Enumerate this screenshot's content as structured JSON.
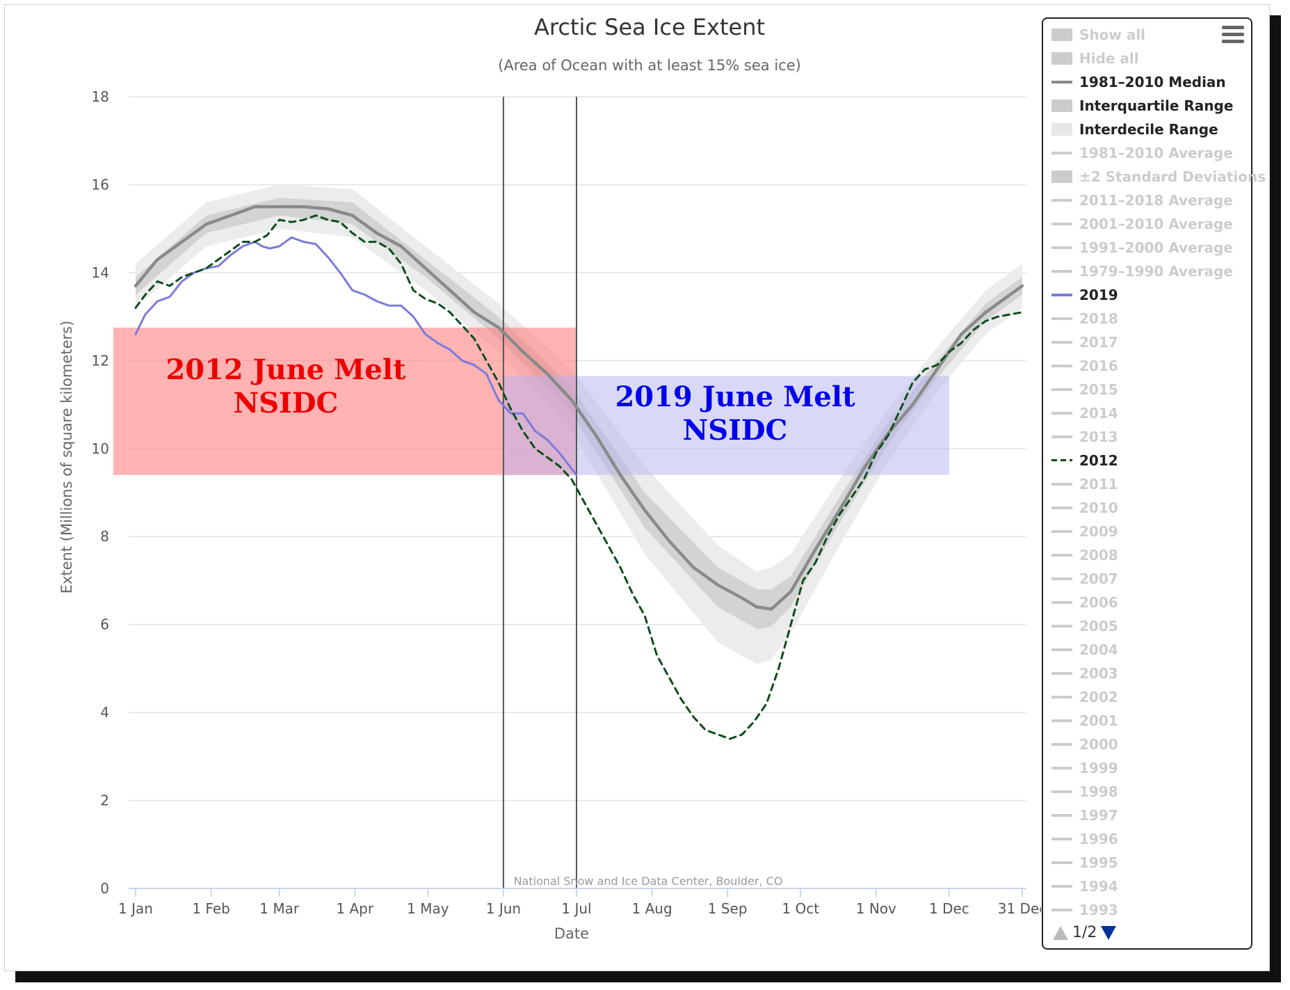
{
  "chart_data": {
    "type": "line",
    "title": "Arctic Sea Ice Extent",
    "subtitle": "(Area of Ocean with at least 15% sea ice)",
    "xlabel": "Date",
    "ylabel": "Extent (Millions of square kilometers)",
    "credit": "National Snow and Ice Data Center, Boulder, CO",
    "xlim": [
      "Jan 1",
      "Dec 31"
    ],
    "ylim": [
      0,
      18
    ],
    "y_ticks": [
      "0",
      "2",
      "4",
      "6",
      "8",
      "10",
      "12",
      "14",
      "16",
      "18"
    ],
    "x_ticks": [
      {
        "label": "1 Jan",
        "day": 1
      },
      {
        "label": "1 Feb",
        "day": 32
      },
      {
        "label": "1 Mar",
        "day": 60
      },
      {
        "label": "1 Apr",
        "day": 91
      },
      {
        "label": "1 May",
        "day": 121
      },
      {
        "label": "1 Jun",
        "day": 152
      },
      {
        "label": "1 Jul",
        "day": 182
      },
      {
        "label": "1 Aug",
        "day": 213
      },
      {
        "label": "1 Sep",
        "day": 244
      },
      {
        "label": "1 Oct",
        "day": 274
      },
      {
        "label": "1 Nov",
        "day": 305
      },
      {
        "label": "1 Dec",
        "day": 335
      },
      {
        "label": "31 Dec",
        "day": 365
      }
    ],
    "grid": true,
    "legend_position": "right",
    "vertical_lines": [
      "1 Jun",
      "1 Jul"
    ],
    "colors": {
      "median": "#8a8a8a",
      "iqr": "#d3d3d3",
      "idr": "#ececec",
      "y2019": "#7b7bdb",
      "y2012": "#0b4d1c",
      "red_box": "#ff8080",
      "blue_box": "#b4b4f0",
      "red_text": "#ee0000",
      "blue_text": "#0000ee"
    },
    "series": [
      {
        "name": "1981–2010 Median",
        "style": "solid",
        "x": [
          1,
          10,
          20,
          30,
          40,
          50,
          60,
          70,
          80,
          90,
          100,
          110,
          120,
          130,
          140,
          150,
          160,
          170,
          180,
          190,
          200,
          210,
          220,
          230,
          240,
          250,
          256,
          262,
          270,
          280,
          290,
          300,
          310,
          320,
          330,
          340,
          350,
          365
        ],
        "y": [
          13.7,
          14.3,
          14.7,
          15.1,
          15.3,
          15.5,
          15.5,
          15.5,
          15.45,
          15.3,
          14.9,
          14.6,
          14.1,
          13.6,
          13.1,
          12.75,
          12.2,
          11.7,
          11.1,
          10.3,
          9.4,
          8.6,
          7.9,
          7.3,
          6.9,
          6.6,
          6.4,
          6.35,
          6.75,
          7.7,
          8.6,
          9.55,
          10.35,
          11.0,
          11.8,
          12.6,
          13.1,
          13.7
        ]
      },
      {
        "name": "Interquartile Range",
        "style": "band",
        "x": [
          1,
          30,
          60,
          90,
          120,
          150,
          180,
          210,
          240,
          256,
          262,
          270,
          290,
          310,
          330,
          350,
          365
        ],
        "low": [
          13.5,
          14.9,
          15.3,
          15.1,
          13.9,
          12.5,
          10.8,
          8.2,
          6.4,
          5.9,
          5.95,
          6.4,
          8.3,
          10.1,
          11.6,
          12.9,
          13.5
        ],
        "high": [
          13.9,
          15.3,
          15.7,
          15.6,
          14.3,
          13.0,
          11.4,
          9.0,
          7.3,
          6.8,
          6.8,
          7.1,
          8.9,
          10.6,
          12.0,
          13.3,
          13.9
        ]
      },
      {
        "name": "Interdecile Range",
        "style": "band",
        "x": [
          1,
          30,
          60,
          90,
          120,
          150,
          180,
          210,
          240,
          256,
          262,
          270,
          290,
          310,
          330,
          350,
          365
        ],
        "low": [
          13.2,
          14.6,
          15.0,
          14.8,
          13.6,
          12.2,
          10.4,
          7.6,
          5.6,
          5.1,
          5.2,
          5.8,
          7.8,
          9.7,
          11.3,
          12.6,
          13.2
        ],
        "high": [
          14.2,
          15.6,
          16.0,
          15.9,
          14.6,
          13.3,
          11.8,
          9.6,
          7.8,
          7.2,
          7.3,
          7.6,
          9.3,
          10.9,
          12.3,
          13.6,
          14.2
        ]
      },
      {
        "name": "2019",
        "style": "solid",
        "x": [
          1,
          5,
          10,
          15,
          20,
          25,
          30,
          35,
          40,
          45,
          50,
          53,
          56,
          60,
          65,
          70,
          75,
          80,
          85,
          90,
          95,
          100,
          105,
          110,
          115,
          120,
          125,
          130,
          135,
          140,
          145,
          150,
          155,
          160,
          165,
          170,
          175,
          182
        ],
        "y": [
          12.6,
          13.05,
          13.35,
          13.45,
          13.8,
          14.0,
          14.1,
          14.15,
          14.4,
          14.6,
          14.7,
          14.6,
          14.55,
          14.6,
          14.8,
          14.7,
          14.65,
          14.35,
          14.0,
          13.6,
          13.5,
          13.35,
          13.25,
          13.25,
          13.0,
          12.6,
          12.4,
          12.25,
          12.0,
          11.9,
          11.7,
          11.1,
          10.8,
          10.8,
          10.4,
          10.2,
          9.9,
          9.4
        ]
      },
      {
        "name": "2012",
        "style": "dashed",
        "x": [
          1,
          5,
          10,
          15,
          20,
          25,
          30,
          35,
          40,
          45,
          50,
          55,
          60,
          65,
          70,
          75,
          80,
          85,
          90,
          95,
          100,
          105,
          110,
          115,
          120,
          125,
          130,
          140,
          150,
          155,
          160,
          165,
          170,
          175,
          180,
          185,
          190,
          195,
          200,
          205,
          210,
          215,
          220,
          225,
          230,
          235,
          240,
          245,
          250,
          255,
          260,
          265,
          270,
          275,
          280,
          285,
          290,
          295,
          300,
          305,
          310,
          315,
          320,
          325,
          330,
          335,
          340,
          345,
          350,
          355,
          365
        ],
        "y": [
          13.2,
          13.5,
          13.8,
          13.7,
          13.9,
          14.0,
          14.1,
          14.3,
          14.5,
          14.7,
          14.7,
          14.85,
          15.2,
          15.15,
          15.2,
          15.3,
          15.2,
          15.15,
          14.9,
          14.7,
          14.7,
          14.55,
          14.2,
          13.6,
          13.4,
          13.3,
          13.1,
          12.5,
          11.5,
          10.9,
          10.4,
          10.0,
          9.8,
          9.6,
          9.3,
          8.8,
          8.3,
          7.8,
          7.3,
          6.7,
          6.2,
          5.3,
          4.8,
          4.3,
          3.9,
          3.6,
          3.5,
          3.4,
          3.5,
          3.8,
          4.2,
          5.0,
          6.0,
          7.0,
          7.4,
          8.0,
          8.5,
          8.9,
          9.3,
          9.9,
          10.3,
          10.9,
          11.5,
          11.8,
          11.9,
          12.2,
          12.4,
          12.7,
          12.9,
          13.0,
          13.1
        ]
      }
    ],
    "annotations": [
      {
        "text_line1": "2012 June Melt",
        "text_line2": "NSIDC",
        "x_range": [
          1,
          182
        ],
        "y_range": [
          9.4,
          12.75
        ],
        "color": "red"
      },
      {
        "text_line1": "2019 June Melt",
        "text_line2": "NSIDC",
        "x_range": [
          152,
          335
        ],
        "y_range": [
          9.4,
          11.65
        ],
        "color": "blue"
      }
    ]
  },
  "legend": {
    "items": [
      {
        "label": "Show all",
        "symbol": "box",
        "color": "#cccccc",
        "active": false
      },
      {
        "label": "Hide all",
        "symbol": "box",
        "color": "#cccccc",
        "active": false
      },
      {
        "label": "1981–2010 Median",
        "symbol": "line",
        "color": "#888888",
        "active": true
      },
      {
        "label": "Interquartile Range",
        "symbol": "box",
        "color": "#cccccc",
        "active": true
      },
      {
        "label": "Interdecile Range",
        "symbol": "box",
        "color": "#e6e6e6",
        "active": true
      },
      {
        "label": "1981–2010 Average",
        "symbol": "line",
        "color": "#cccccc",
        "active": false
      },
      {
        "label": "±2 Standard Deviations",
        "symbol": "box",
        "color": "#cccccc",
        "active": false
      },
      {
        "label": "2011–2018 Average",
        "symbol": "line",
        "color": "#cccccc",
        "active": false
      },
      {
        "label": "2001–2010 Average",
        "symbol": "line",
        "color": "#cccccc",
        "active": false
      },
      {
        "label": "1991–2000 Average",
        "symbol": "line",
        "color": "#cccccc",
        "active": false
      },
      {
        "label": "1979–1990 Average",
        "symbol": "line",
        "color": "#cccccc",
        "active": false
      },
      {
        "label": "2019",
        "symbol": "line",
        "color": "#7b7bdb",
        "active": true
      },
      {
        "label": "2018",
        "symbol": "line",
        "color": "#cccccc",
        "active": false
      },
      {
        "label": "2017",
        "symbol": "line",
        "color": "#cccccc",
        "active": false
      },
      {
        "label": "2016",
        "symbol": "line",
        "color": "#cccccc",
        "active": false
      },
      {
        "label": "2015",
        "symbol": "line",
        "color": "#cccccc",
        "active": false
      },
      {
        "label": "2014",
        "symbol": "line",
        "color": "#cccccc",
        "active": false
      },
      {
        "label": "2013",
        "symbol": "line",
        "color": "#cccccc",
        "active": false
      },
      {
        "label": "2012",
        "symbol": "dash",
        "color": "#0b4d1c",
        "active": true
      },
      {
        "label": "2011",
        "symbol": "line",
        "color": "#cccccc",
        "active": false
      },
      {
        "label": "2010",
        "symbol": "line",
        "color": "#cccccc",
        "active": false
      },
      {
        "label": "2009",
        "symbol": "line",
        "color": "#cccccc",
        "active": false
      },
      {
        "label": "2008",
        "symbol": "line",
        "color": "#cccccc",
        "active": false
      },
      {
        "label": "2007",
        "symbol": "line",
        "color": "#cccccc",
        "active": false
      },
      {
        "label": "2006",
        "symbol": "line",
        "color": "#cccccc",
        "active": false
      },
      {
        "label": "2005",
        "symbol": "line",
        "color": "#cccccc",
        "active": false
      },
      {
        "label": "2004",
        "symbol": "line",
        "color": "#cccccc",
        "active": false
      },
      {
        "label": "2003",
        "symbol": "line",
        "color": "#cccccc",
        "active": false
      },
      {
        "label": "2002",
        "symbol": "line",
        "color": "#cccccc",
        "active": false
      },
      {
        "label": "2001",
        "symbol": "line",
        "color": "#cccccc",
        "active": false
      },
      {
        "label": "2000",
        "symbol": "line",
        "color": "#cccccc",
        "active": false
      },
      {
        "label": "1999",
        "symbol": "line",
        "color": "#cccccc",
        "active": false
      },
      {
        "label": "1998",
        "symbol": "line",
        "color": "#cccccc",
        "active": false
      },
      {
        "label": "1997",
        "symbol": "line",
        "color": "#cccccc",
        "active": false
      },
      {
        "label": "1996",
        "symbol": "line",
        "color": "#cccccc",
        "active": false
      },
      {
        "label": "1995",
        "symbol": "line",
        "color": "#cccccc",
        "active": false
      },
      {
        "label": "1994",
        "symbol": "line",
        "color": "#cccccc",
        "active": false
      },
      {
        "label": "1993",
        "symbol": "line",
        "color": "#cccccc",
        "active": false
      }
    ],
    "menu_icon": "hamburger-menu-icon",
    "pager_text": "1/2"
  }
}
